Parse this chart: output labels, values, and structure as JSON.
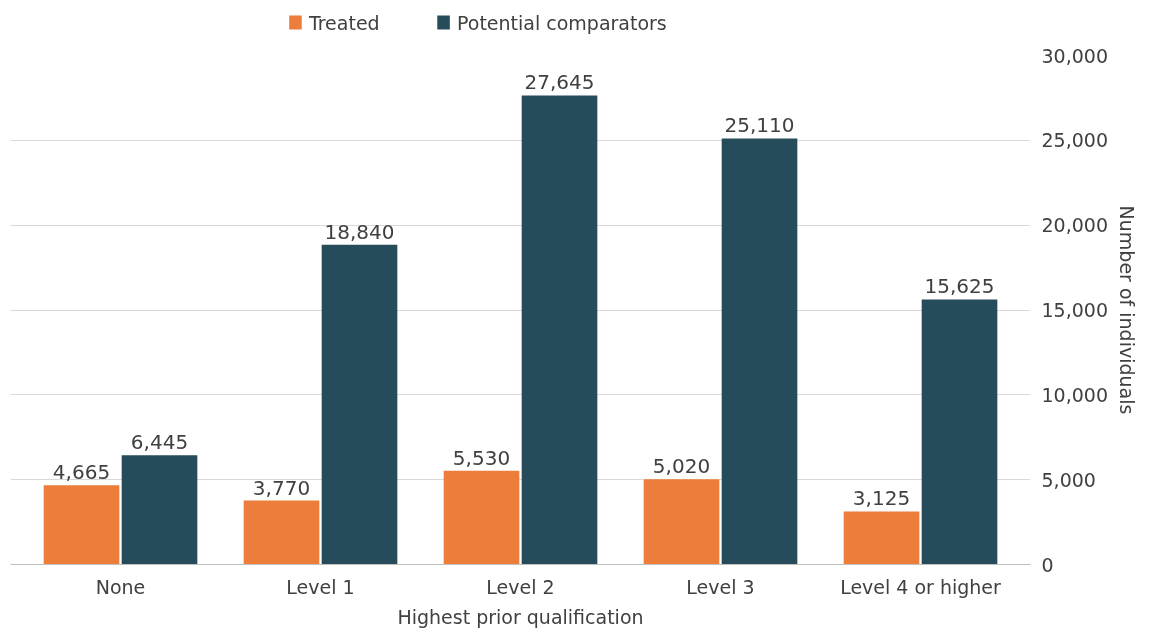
{
  "chart_data": {
    "type": "bar",
    "xlabel": "Highest prior qualification",
    "ylabel": "Number of individuals",
    "categories": [
      "None",
      "Level 1",
      "Level 2",
      "Level 3",
      "Level 4 or higher"
    ],
    "series": [
      {
        "name": "Treated",
        "color": "#ed7d3b",
        "values": [
          4665,
          3770,
          5530,
          5020,
          3125
        ],
        "value_labels": [
          "4,665",
          "3,770",
          "5,530",
          "5,020",
          "3,125"
        ]
      },
      {
        "name": "Potential comparators",
        "color": "#264b5a",
        "values": [
          6445,
          18840,
          27645,
          25110,
          15625
        ],
        "value_labels": [
          "6,445",
          "18,840",
          "27,645",
          "25,110",
          "15,625"
        ]
      }
    ],
    "ylim": [
      0,
      30000
    ],
    "yticks": [
      {
        "value": 0,
        "label": "0"
      },
      {
        "value": 5000,
        "label": "5,000"
      },
      {
        "value": 10000,
        "label": "10,000"
      },
      {
        "value": 15000,
        "label": "15,000"
      },
      {
        "value": 20000,
        "label": "20,000"
      },
      {
        "value": 25000,
        "label": "25,000"
      },
      {
        "value": 30000,
        "label": "30,000"
      }
    ],
    "grid": "y",
    "legend": "top"
  }
}
